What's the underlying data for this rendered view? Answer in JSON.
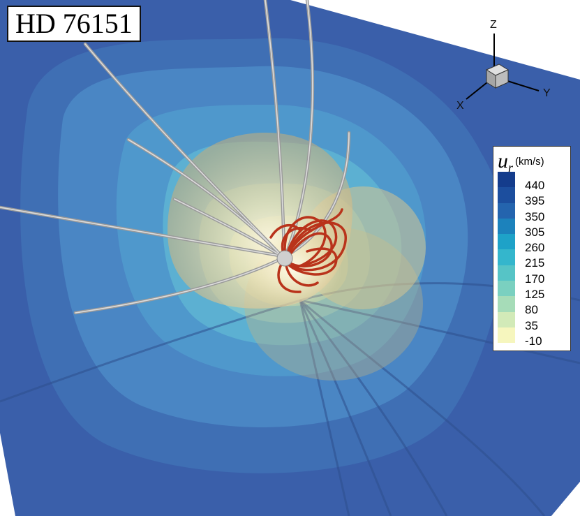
{
  "title": "HD 76151",
  "legend": {
    "symbol": "u",
    "subscript": "r",
    "unit": "(km/s)",
    "levels": [
      {
        "label": "440",
        "color": "#143c8c"
      },
      {
        "label": "395",
        "color": "#1c4e9e"
      },
      {
        "label": "350",
        "color": "#2464ae"
      },
      {
        "label": "305",
        "color": "#1c82bc"
      },
      {
        "label": "260",
        "color": "#1ea2c8"
      },
      {
        "label": "215",
        "color": "#34b6cc"
      },
      {
        "label": "170",
        "color": "#56c4c6"
      },
      {
        "label": "125",
        "color": "#7ad0c0"
      },
      {
        "label": "80",
        "color": "#a6dcb8"
      },
      {
        "label": "35",
        "color": "#d2eab8"
      },
      {
        "label": "-10",
        "color": "#f6f6be"
      }
    ]
  },
  "axes": {
    "z": "Z",
    "x": "X",
    "y": "Y"
  },
  "colors": {
    "plane_dark": "#3c62ac",
    "plane_mid": "#4a86c4",
    "bubble": "#d8c493",
    "field_lines": "#c0381e",
    "streamlines": "#b8b8b8"
  }
}
